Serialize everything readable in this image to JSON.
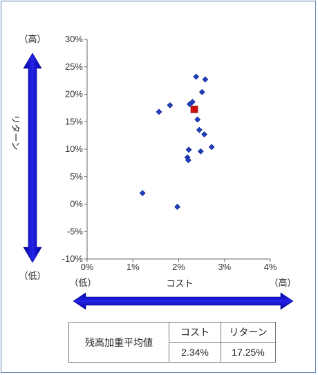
{
  "chart_data": {
    "type": "scatter",
    "title": "",
    "xlabel": "コスト",
    "ylabel": "リターン",
    "xlim": [
      0,
      4
    ],
    "ylim": [
      -10,
      30
    ],
    "x_ticks": [
      0,
      1,
      2,
      3,
      4
    ],
    "y_ticks": [
      -10,
      -5,
      0,
      5,
      10,
      15,
      20,
      25,
      30
    ],
    "x_tick_labels": [
      "0%",
      "1%",
      "2%",
      "3%",
      "4%"
    ],
    "y_tick_labels": [
      "-10%",
      "-5%",
      "0%",
      "5%",
      "10%",
      "15%",
      "20%",
      "25%",
      "30%"
    ],
    "grid": false,
    "series": [
      {
        "marker": "diamond",
        "color": "#1f3fbf",
        "points": [
          {
            "x": 1.21,
            "y": 2.0
          },
          {
            "x": 1.57,
            "y": 16.8
          },
          {
            "x": 1.81,
            "y": 18.0
          },
          {
            "x": 1.97,
            "y": -0.5
          },
          {
            "x": 2.19,
            "y": 8.5
          },
          {
            "x": 2.21,
            "y": 8.0
          },
          {
            "x": 2.22,
            "y": 9.9
          },
          {
            "x": 2.24,
            "y": 18.2
          },
          {
            "x": 2.3,
            "y": 18.6
          },
          {
            "x": 2.38,
            "y": 23.2
          },
          {
            "x": 2.41,
            "y": 15.4
          },
          {
            "x": 2.45,
            "y": 13.5
          },
          {
            "x": 2.48,
            "y": 9.6
          },
          {
            "x": 2.51,
            "y": 20.4
          },
          {
            "x": 2.56,
            "y": 12.7
          },
          {
            "x": 2.58,
            "y": 22.7
          },
          {
            "x": 2.72,
            "y": 10.4
          }
        ]
      },
      {
        "marker": "square",
        "color": "#cc1111",
        "points": [
          {
            "x": 2.34,
            "y": 17.25
          }
        ]
      }
    ]
  },
  "axis_hints": {
    "y_high": "（高）",
    "y_low": "（低）",
    "x_low": "（低）",
    "x_high": "（高）"
  },
  "summary_table": {
    "row_label": "残高加重平均値",
    "headers": [
      "コスト",
      "リターン"
    ],
    "values": [
      "2.34%",
      "17.25%"
    ]
  },
  "colors": {
    "arrow": "#0a0ab8",
    "frame": "#5b7fb0"
  }
}
